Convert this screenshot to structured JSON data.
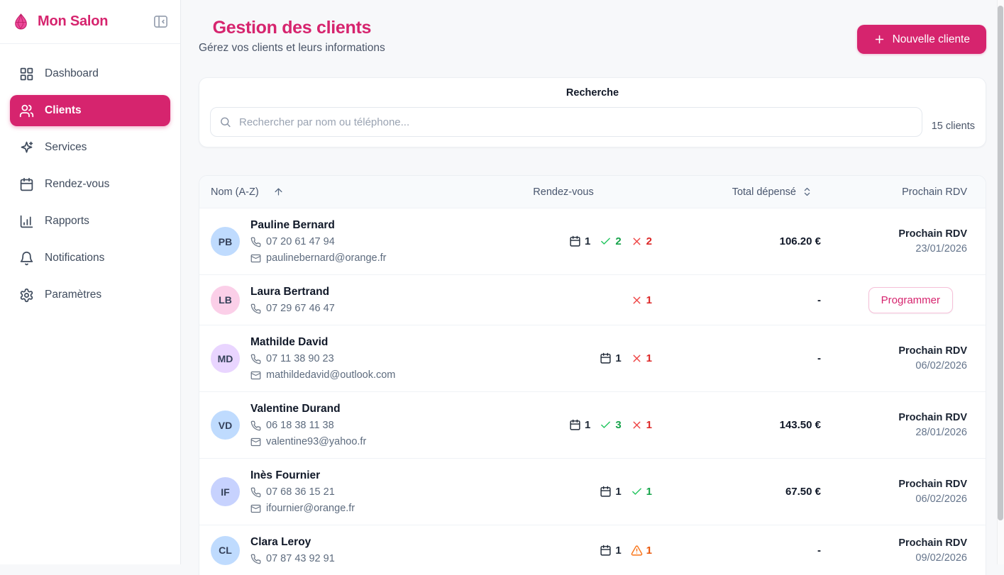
{
  "app": {
    "name": "Mon Salon",
    "logo_icon": "drop-icon"
  },
  "colors": {
    "primary_pink": "#D6246E",
    "green_check": "#22C55E",
    "green_text": "#16A34A",
    "red_x": "#EF4444",
    "red_text": "#DC2626",
    "orange_warning": "#F97316",
    "orange_text": "#EA580C"
  },
  "sidebar": {
    "collapse_icon": "panel-collapse-icon",
    "items": [
      {
        "label": "Dashboard",
        "icon": "layout-grid-icon",
        "active": false
      },
      {
        "label": "Clients",
        "icon": "users-icon",
        "active": true
      },
      {
        "label": "Services",
        "icon": "sparkles-icon",
        "active": false
      },
      {
        "label": "Rendez-vous",
        "icon": "calendar-icon",
        "active": false
      },
      {
        "label": "Rapports",
        "icon": "bar-chart-icon",
        "active": false
      },
      {
        "label": "Notifications",
        "icon": "bell-icon",
        "active": false
      },
      {
        "label": "Paramètres",
        "icon": "gear-icon",
        "active": false
      }
    ]
  },
  "header": {
    "title": "Gestion des clients",
    "subtitle": "Gérez vos clients et leurs informations",
    "new_client_button": "Nouvelle cliente"
  },
  "search": {
    "label": "Recherche",
    "placeholder": "Rechercher par nom ou téléphone...",
    "count": "15 clients"
  },
  "table": {
    "columns": {
      "name": "Nom (A-Z)",
      "name_sort_icon": "arrow-up-icon",
      "rdv": "Rendez-vous",
      "total": "Total dépensé",
      "total_sort_icon": "chevrons-up-down-icon",
      "next": "Prochain RDV"
    },
    "rows": [
      {
        "initials": "PB",
        "avatar_bg": "#BFDBFE",
        "name": "Pauline Bernard",
        "phone": "07 20 61 47 94",
        "email": "paulinebernard@orange.fr",
        "stats": [
          {
            "type": "scheduled",
            "icon": "calendar-icon",
            "value": "1"
          },
          {
            "type": "completed",
            "icon": "check-icon",
            "value": "2"
          },
          {
            "type": "cancelled",
            "icon": "x-icon",
            "value": "2"
          }
        ],
        "total": "106.20 €",
        "next": {
          "type": "date",
          "label": "Prochain RDV",
          "date": "23/01/2026"
        }
      },
      {
        "initials": "LB",
        "avatar_bg": "#FBCFE8",
        "name": "Laura Bertrand",
        "phone": "07 29 67 46 47",
        "email": null,
        "stats": [
          {
            "type": "cancelled",
            "icon": "x-icon",
            "value": "1"
          }
        ],
        "total": "-",
        "next": {
          "type": "button",
          "button_label": "Programmer"
        }
      },
      {
        "initials": "MD",
        "avatar_bg": "#E9D5FF",
        "name": "Mathilde David",
        "phone": "07 11 38 90 23",
        "email": "mathildedavid@outlook.com",
        "stats": [
          {
            "type": "scheduled",
            "icon": "calendar-icon",
            "value": "1"
          },
          {
            "type": "cancelled",
            "icon": "x-icon",
            "value": "1"
          }
        ],
        "total": "-",
        "next": {
          "type": "date",
          "label": "Prochain RDV",
          "date": "06/02/2026"
        }
      },
      {
        "initials": "VD",
        "avatar_bg": "#BFDBFE",
        "name": "Valentine Durand",
        "phone": "06 18 38 11 38",
        "email": "valentine93@yahoo.fr",
        "stats": [
          {
            "type": "scheduled",
            "icon": "calendar-icon",
            "value": "1"
          },
          {
            "type": "completed",
            "icon": "check-icon",
            "value": "3"
          },
          {
            "type": "cancelled",
            "icon": "x-icon",
            "value": "1"
          }
        ],
        "total": "143.50 €",
        "next": {
          "type": "date",
          "label": "Prochain RDV",
          "date": "28/01/2026"
        }
      },
      {
        "initials": "IF",
        "avatar_bg": "#C7D2FE",
        "name": "Inès Fournier",
        "phone": "07 68 36 15 21",
        "email": "ifournier@orange.fr",
        "stats": [
          {
            "type": "scheduled",
            "icon": "calendar-icon",
            "value": "1"
          },
          {
            "type": "completed",
            "icon": "check-icon",
            "value": "1"
          }
        ],
        "total": "67.50 €",
        "next": {
          "type": "date",
          "label": "Prochain RDV",
          "date": "06/02/2026"
        }
      },
      {
        "initials": "CL",
        "avatar_bg": "#BFDBFE",
        "name": "Clara Leroy",
        "phone": "07 87 43 92 91",
        "email": null,
        "stats": [
          {
            "type": "scheduled",
            "icon": "calendar-icon",
            "value": "1"
          },
          {
            "type": "warning",
            "icon": "warning-icon",
            "value": "1"
          }
        ],
        "total": "-",
        "next": {
          "type": "date",
          "label": "Prochain RDV",
          "date": "09/02/2026"
        }
      }
    ]
  }
}
